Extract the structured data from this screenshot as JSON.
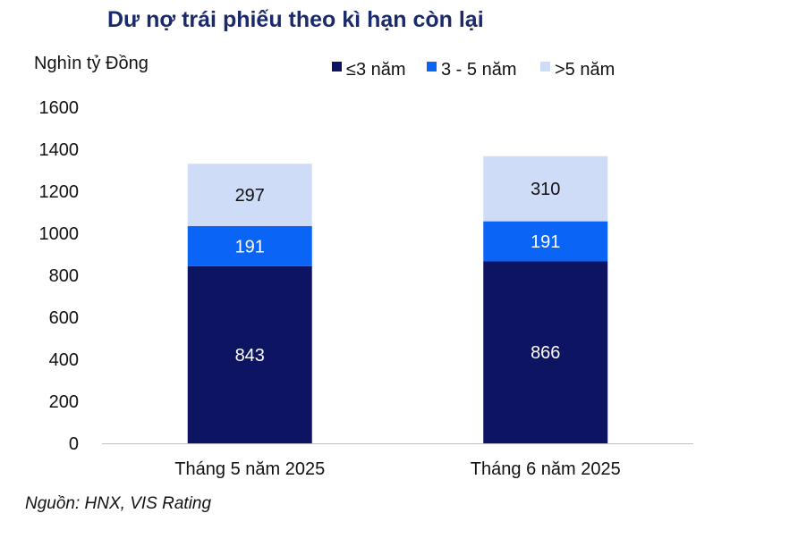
{
  "chart_data": {
    "type": "bar",
    "stacked": true,
    "title": "Dư nợ trái phiếu theo kì hạn còn lại",
    "ylabel": "Nghìn tỷ Đồng",
    "source": "Nguồn: HNX, VIS Rating",
    "categories": [
      "Tháng 5 năm 2025",
      "Tháng 6 năm 2025"
    ],
    "ylim": [
      0,
      1600
    ],
    "yticks": [
      0,
      200,
      400,
      600,
      800,
      1000,
      1200,
      1400,
      1600
    ],
    "legend_position": "top",
    "series": [
      {
        "name": "≤3 năm",
        "color": "#0d1461",
        "label_color": "#ffffff",
        "values": [
          843,
          866
        ]
      },
      {
        "name": "3 - 5 năm",
        "color": "#0a64f5",
        "label_color": "#ffffff",
        "values": [
          191,
          191
        ]
      },
      {
        "name": ">5 năm",
        "color": "#cfdcf7",
        "label_color": "#111111",
        "values": [
          297,
          310
        ]
      }
    ]
  }
}
